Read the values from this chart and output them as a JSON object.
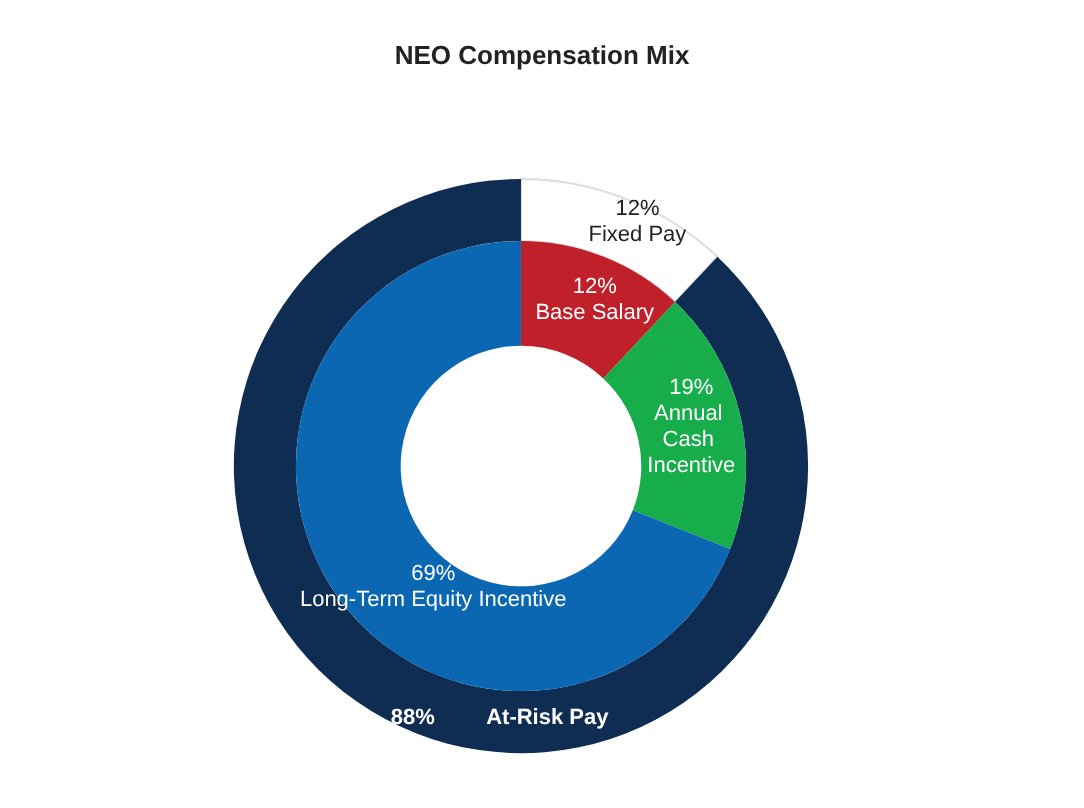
{
  "chart_data": [
    {
      "type": "donut",
      "title": "NEO Compensation Mix",
      "legend": false,
      "categories": [
        "Fixed Pay",
        "At-Risk Pay"
      ],
      "values": [
        12,
        88
      ],
      "value_labels": [
        "12%",
        "88%"
      ],
      "colors": [
        "#ffffff",
        "#0f2d53"
      ]
    },
    {
      "type": "donut",
      "legend": false,
      "categories": [
        "Base Salary",
        "Annual Cash Incentive",
        "Long-Term Equity Incentive"
      ],
      "values": [
        12,
        19,
        69
      ],
      "value_labels": [
        "12%",
        "19%",
        "69%"
      ],
      "colors": [
        "#c0202a",
        "#17ad4b",
        "#0b67b2"
      ]
    }
  ]
}
